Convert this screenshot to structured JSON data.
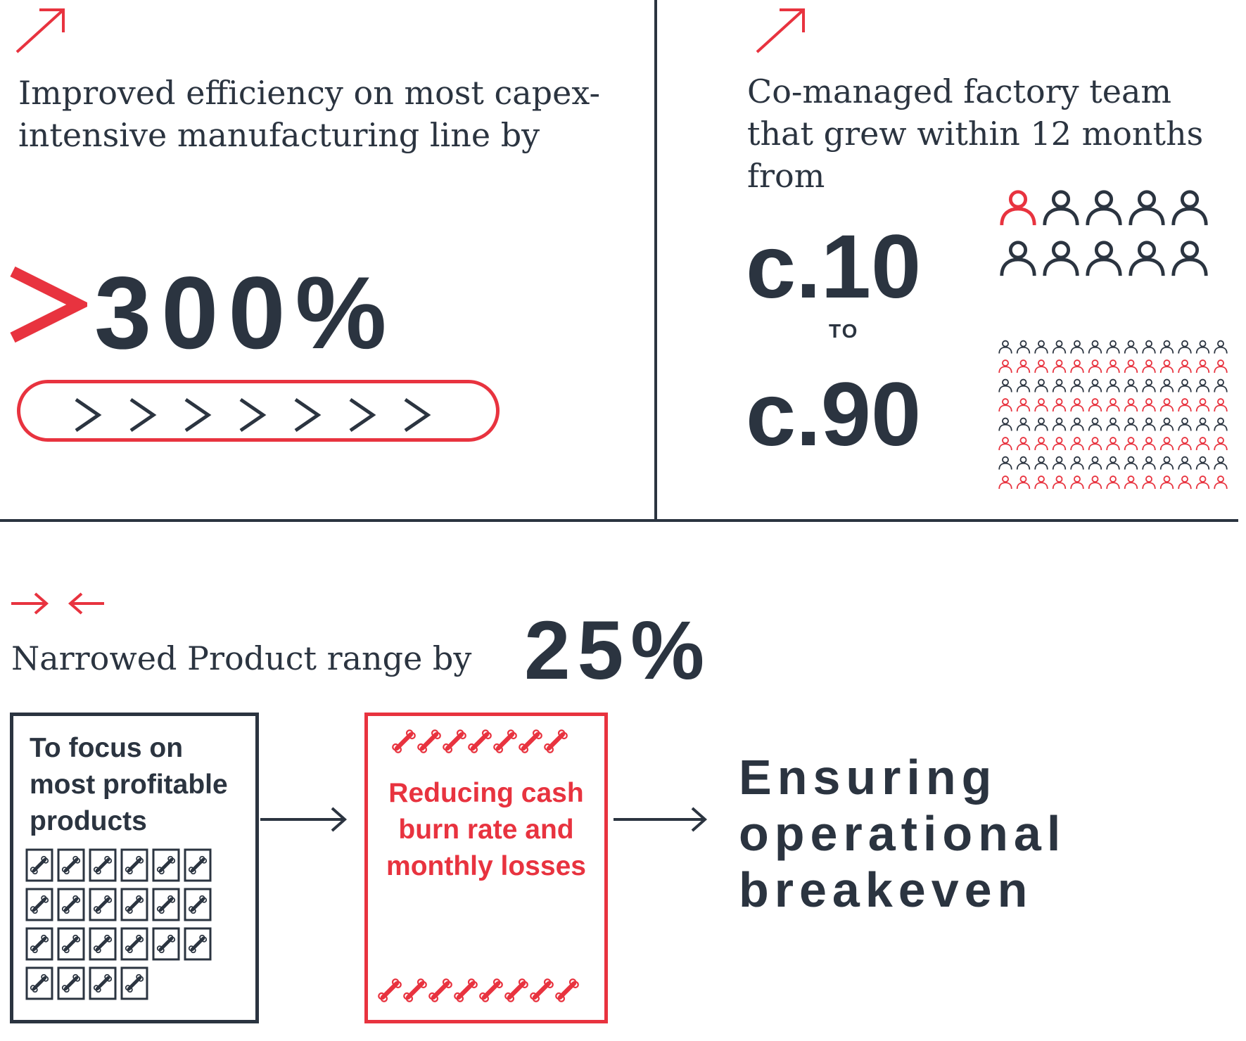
{
  "panel_efficiency": {
    "heading": "Improved efficiency on most capex-intensive manufacturing line by",
    "value": "300%",
    "accent_color": "#e8333f",
    "icon": "arrow-up-right-icon"
  },
  "panel_team": {
    "heading": "Co-managed factory team that grew within 12 months from",
    "from_value": "c.10",
    "to_label": "TO",
    "to_value": "c.90",
    "icon": "arrow-up-right-icon"
  },
  "panel_range": {
    "heading": "Narrowed Product range by",
    "value": "25%",
    "box1_text": "To focus on most profitable products",
    "box2_text": "Reducing cash burn rate and monthly losses",
    "result_text": "Ensuring operational breakeven",
    "icon": "arrows-converge-icon"
  },
  "colors": {
    "dark": "#2b3440",
    "red": "#e8333f"
  }
}
